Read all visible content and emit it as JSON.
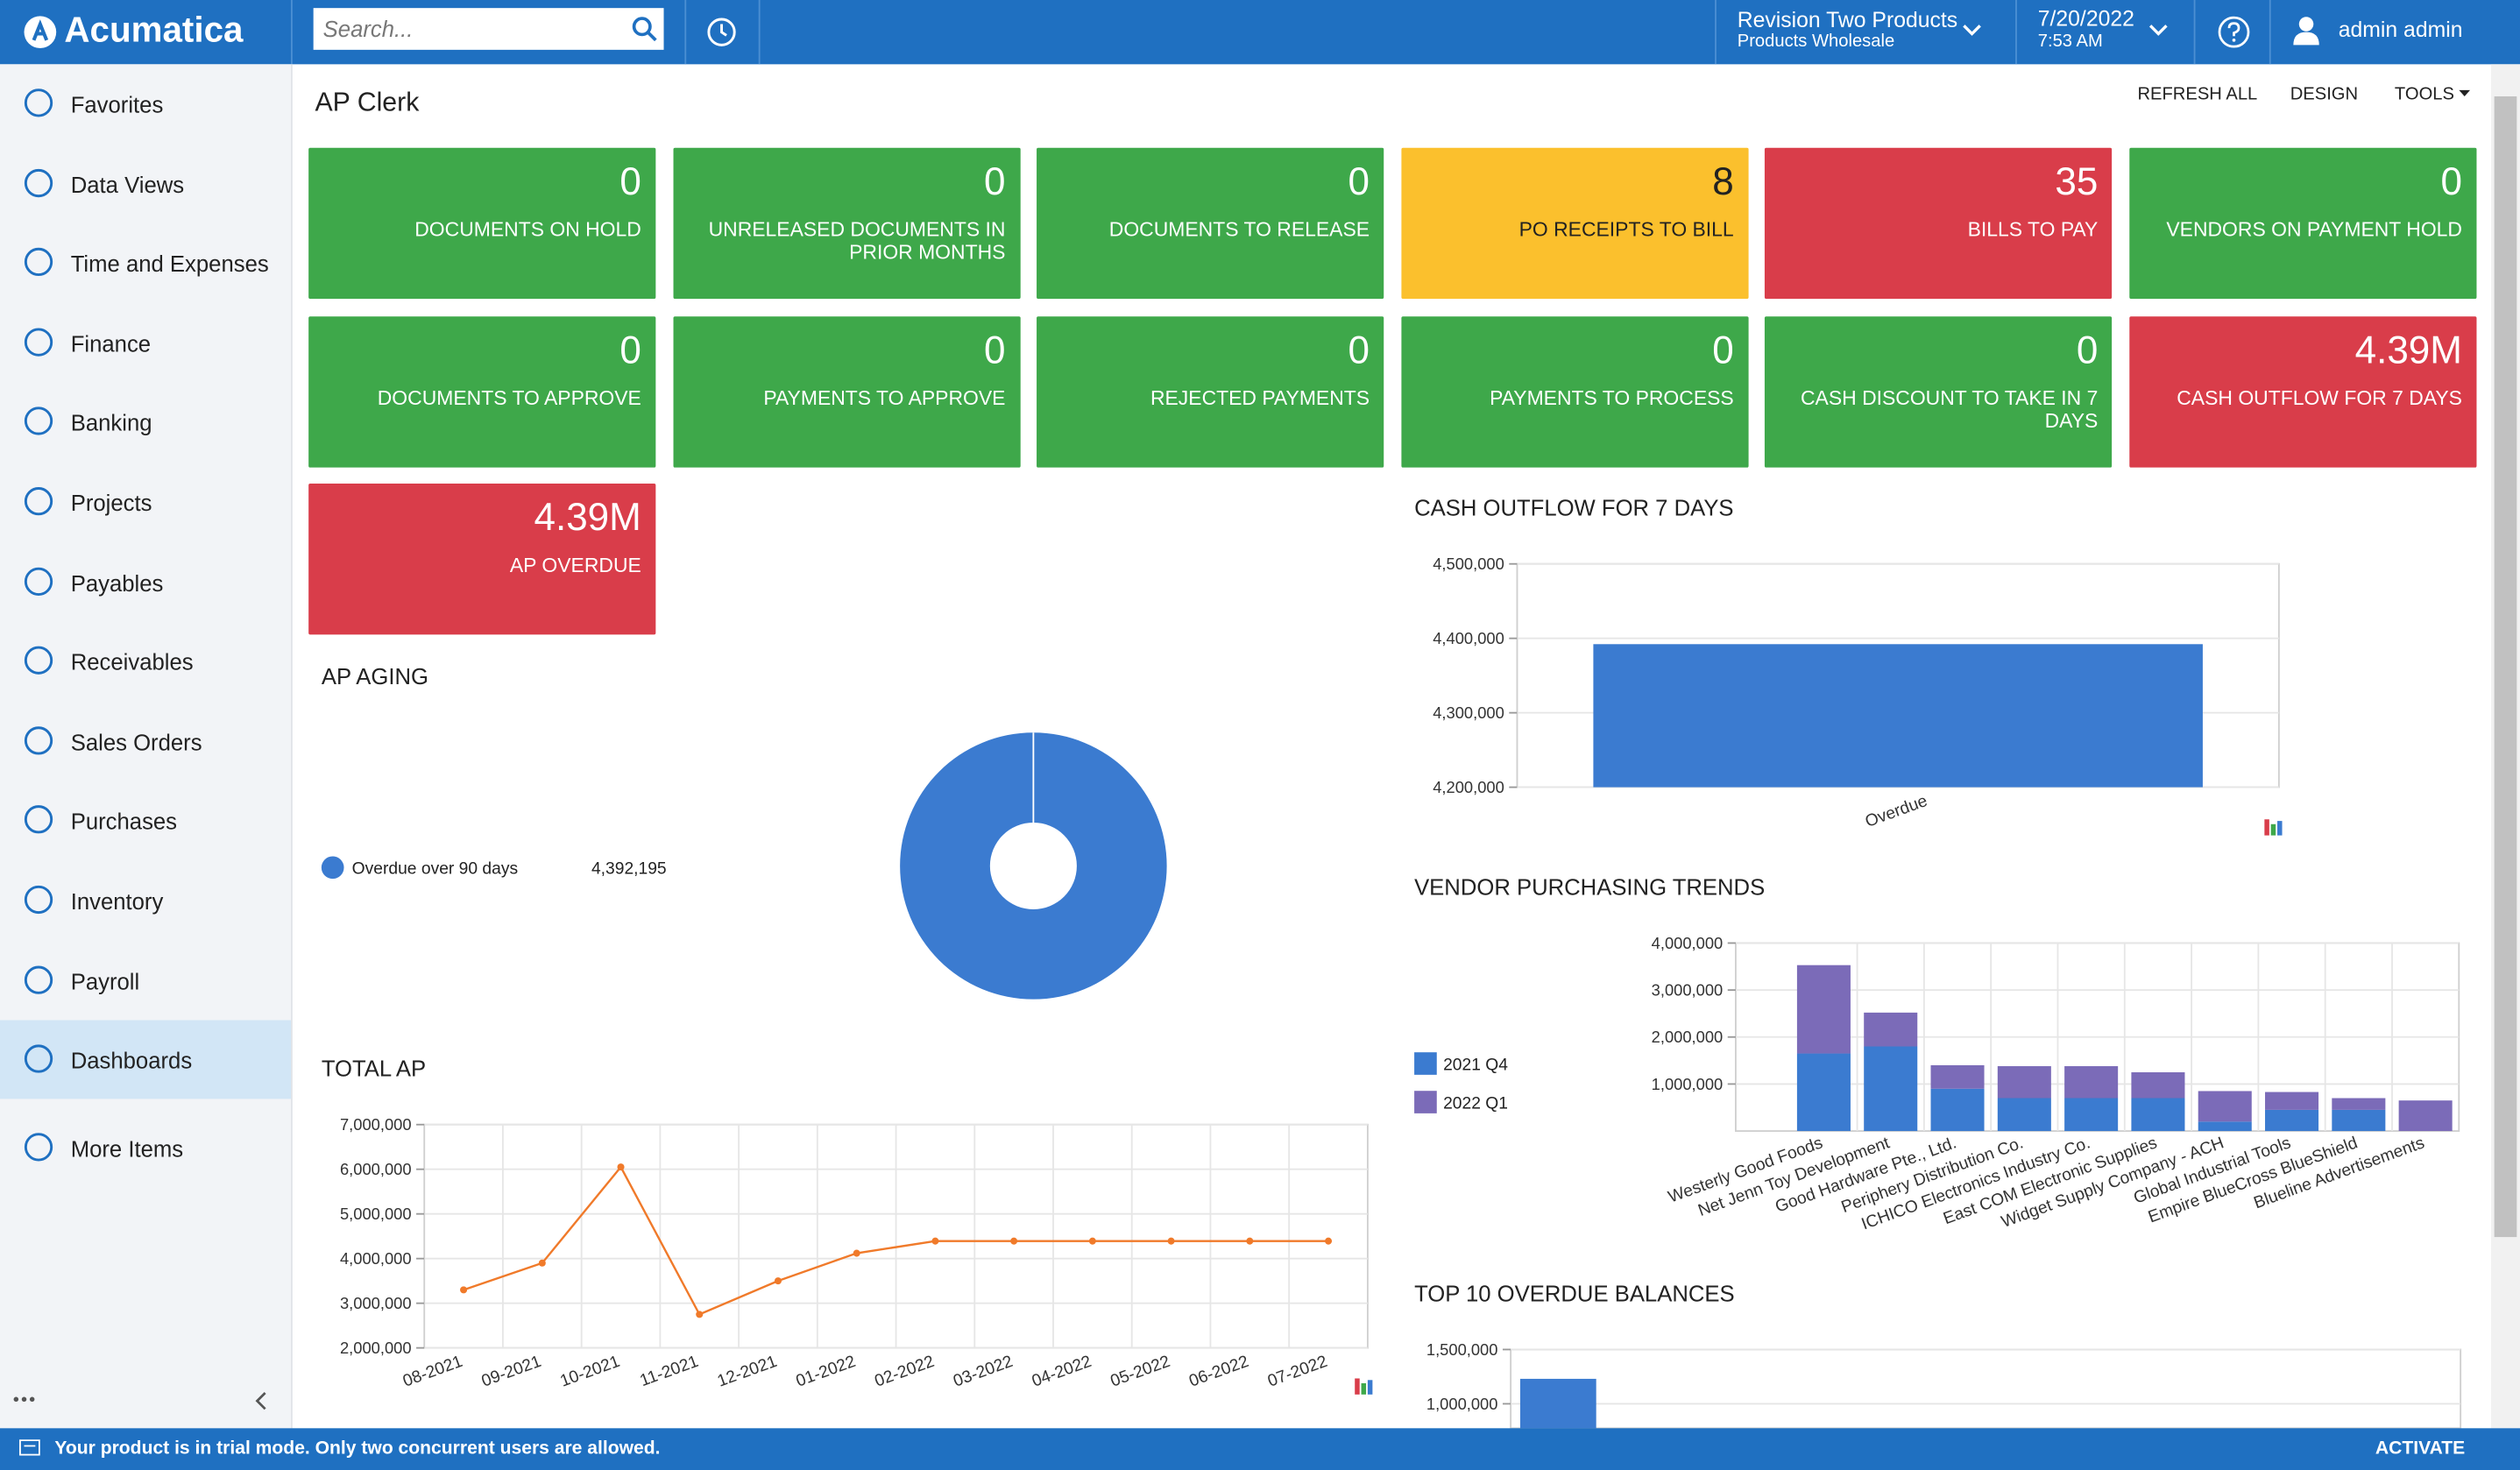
{
  "header": {
    "brand": "Acumatica",
    "search_placeholder": "Search...",
    "company": "Revision Two Products",
    "branch": "Products Wholesale",
    "date": "7/20/2022",
    "time": "7:53 AM",
    "user": "admin admin"
  },
  "sidebar": {
    "items": [
      "Favorites",
      "Data Views",
      "Time and Expenses",
      "Finance",
      "Banking",
      "Projects",
      "Payables",
      "Receivables",
      "Sales Orders",
      "Purchases",
      "Inventory",
      "Payroll",
      "Dashboards",
      "More Items"
    ],
    "active": 12
  },
  "page": {
    "title": "AP Clerk",
    "actions": [
      "REFRESH ALL",
      "DESIGN",
      "TOOLS"
    ]
  },
  "tiles": [
    {
      "value": 0,
      "label": "DOCUMENTS ON HOLD",
      "color": "#3ea84a"
    },
    {
      "value": 0,
      "label": "UNRELEASED DOCUMENTS IN PRIOR MONTHS",
      "color": "#3ea84a"
    },
    {
      "value": 0,
      "label": "DOCUMENTS TO RELEASE",
      "color": "#3ea84a"
    },
    {
      "value": 8,
      "label": "PO RECEIPTS TO BILL",
      "color": "#fbc02d",
      "text_color": "#222222"
    },
    {
      "value": 35,
      "label": "BILLS TO PAY",
      "color": "#d93d4a"
    },
    {
      "value": 0,
      "label": "VENDORS ON PAYMENT HOLD",
      "color": "#3ea84a"
    },
    {
      "value": 0,
      "label": "DOCUMENTS TO APPROVE",
      "color": "#3ea84a"
    },
    {
      "value": 0,
      "label": "PAYMENTS TO APPROVE",
      "color": "#3ea84a"
    },
    {
      "value": 0,
      "label": "REJECTED PAYMENTS",
      "color": "#3ea84a"
    },
    {
      "value": 0,
      "label": "PAYMENTS TO PROCESS",
      "color": "#3ea84a"
    },
    {
      "value": 0,
      "label": "CASH DISCOUNT TO TAKE IN 7 DAYS",
      "color": "#3ea84a"
    },
    {
      "value": "4.39M",
      "label": "CASH OUTFLOW FOR 7 DAYS",
      "color": "#d93d4a"
    },
    {
      "value": "4.39M",
      "label": "AP OVERDUE",
      "color": "#d93d4a"
    }
  ],
  "chart_data": [
    {
      "type": "pie",
      "title": "AP AGING",
      "categories": [
        "Overdue over 90 days"
      ],
      "values": [
        4392195
      ],
      "value_labels": [
        "4,392,195"
      ],
      "colors": [
        "#3b7bd0"
      ],
      "donut": true
    },
    {
      "type": "bar",
      "title": "CASH OUTFLOW FOR 7 DAYS",
      "categories": [
        "Overdue"
      ],
      "values": [
        4392195
      ],
      "color": "#3b7bd0",
      "ylim": [
        4200000,
        4500000
      ],
      "yticks": [
        {
          "value": 4200000,
          "label": "4,200,000"
        },
        {
          "value": 4300000,
          "label": "4,300,000"
        },
        {
          "value": 4400000,
          "label": "4,400,000"
        },
        {
          "value": 4500000,
          "label": "4,500,000"
        }
      ],
      "grid": true
    },
    {
      "type": "stacked_bar",
      "title": "VENDOR PURCHASING TRENDS",
      "categories": [
        "Westerly Good Foods",
        "Net Jenn Toy Development",
        "Good Hardware Pte., Ltd.",
        "Periphery Distribution Co.",
        "ICHICO Electronics Industry Co.",
        "East COM Electronic Supplies",
        "Widget Supply Company - ACH",
        "Global Industrial Tools",
        "Empire BlueCross BlueShield",
        "Blueline Advertisements"
      ],
      "series": [
        {
          "name": "2021 Q4",
          "color": "#3b7bd0",
          "values": [
            1650000,
            1800000,
            900000,
            700000,
            700000,
            700000,
            200000,
            450000,
            450000,
            0
          ]
        },
        {
          "name": "2022 Q1",
          "color": "#7b6bb8",
          "values": [
            1880000,
            720000,
            500000,
            680000,
            680000,
            550000,
            650000,
            380000,
            250000,
            650000
          ]
        }
      ],
      "ylim": [
        0,
        4000000
      ],
      "yticks": [
        {
          "value": 1000000,
          "label": "1,000,000"
        },
        {
          "value": 2000000,
          "label": "2,000,000"
        },
        {
          "value": 3000000,
          "label": "3,000,000"
        },
        {
          "value": 4000000,
          "label": "4,000,000"
        }
      ],
      "grid": true
    },
    {
      "type": "line",
      "title": "TOTAL AP",
      "categories": [
        "08-2021",
        "09-2021",
        "10-2021",
        "11-2021",
        "12-2021",
        "01-2022",
        "02-2022",
        "03-2022",
        "04-2022",
        "05-2022",
        "06-2022",
        "07-2022"
      ],
      "values": [
        3300000,
        3900000,
        6050000,
        2750000,
        3500000,
        4120000,
        4392195,
        4392195,
        4392195,
        4392195,
        4392195,
        4392195
      ],
      "color": "#f07a2a",
      "ylim": [
        2000000,
        7000000
      ],
      "yticks": [
        {
          "value": 2000000,
          "label": "2,000,000"
        },
        {
          "value": 3000000,
          "label": "3,000,000"
        },
        {
          "value": 4000000,
          "label": "4,000,000"
        },
        {
          "value": 5000000,
          "label": "5,000,000"
        },
        {
          "value": 6000000,
          "label": "6,000,000"
        },
        {
          "value": 7000000,
          "label": "7,000,000"
        }
      ],
      "grid": true
    },
    {
      "type": "bar",
      "title": "TOP 10 OVERDUE BALANCES",
      "categories": [
        null
      ],
      "values": [
        1230000
      ],
      "color": "#3b7bd0",
      "ylim": [
        775000,
        1500000
      ],
      "yticks": [
        {
          "value": 1000000,
          "label": "1,000,000"
        },
        {
          "value": 1500000,
          "label": "1,500,000"
        }
      ],
      "grid": true
    }
  ],
  "footer": {
    "message": "Your product is in trial mode. Only two concurrent users are allowed.",
    "action": "ACTIVATE"
  }
}
